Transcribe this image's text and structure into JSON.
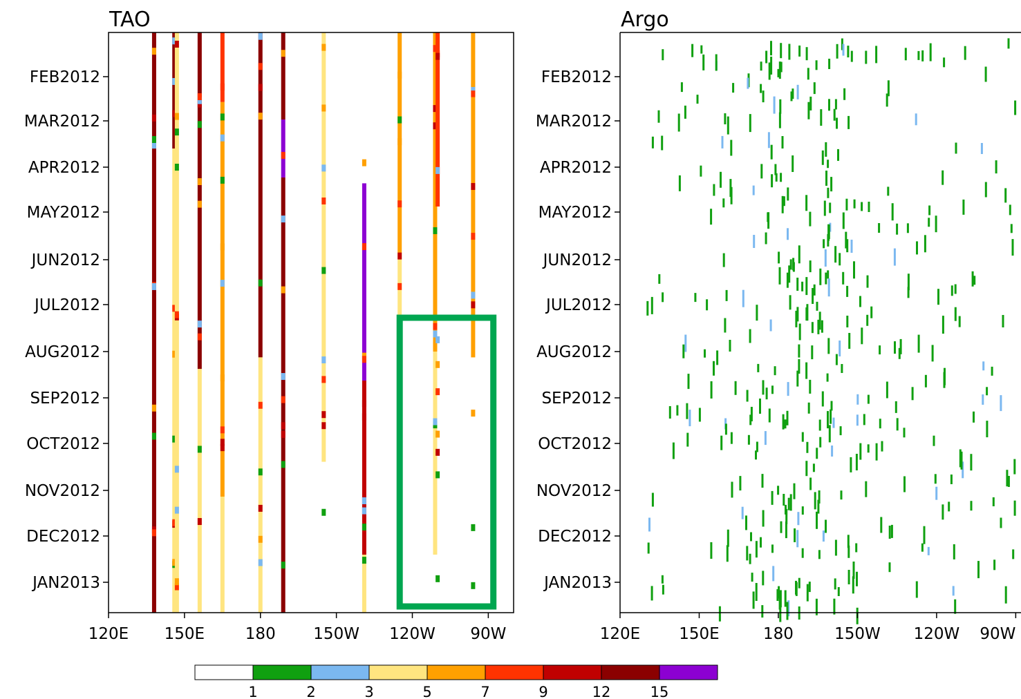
{
  "chart_data": [
    {
      "type": "heatmap",
      "title": "TAO",
      "x_ticks": [
        "120E",
        "150E",
        "180",
        "150W",
        "120W",
        "90W"
      ],
      "x_tick_lon": [
        120,
        150,
        180,
        210,
        240,
        270
      ],
      "xlim": [
        120,
        280
      ],
      "y_ticks": [
        "FEB2012",
        "MAR2012",
        "APR2012",
        "MAY2012",
        "JUN2012",
        "JUL2012",
        "AUG2012",
        "SEP2012",
        "OCT2012",
        "NOV2012",
        "DEC2012",
        "JAN2013"
      ],
      "ylim": [
        "JAN2012",
        "JAN2013"
      ],
      "columns": [
        {
          "lon": 138,
          "segments": [
            {
              "from": 0,
              "to": 1,
              "class": 7
            }
          ]
        },
        {
          "lon": 146,
          "segments": [
            {
              "from": 0,
              "to": 0.2,
              "class": 7
            },
            {
              "from": 0.2,
              "to": 1,
              "class": 3
            }
          ]
        },
        {
          "lon": 147,
          "segments": [
            {
              "from": 0,
              "to": 1,
              "class": 3
            }
          ]
        },
        {
          "lon": 156,
          "segments": [
            {
              "from": 0,
              "to": 0.58,
              "class": 7
            },
            {
              "from": 0.58,
              "to": 1,
              "class": 3
            }
          ]
        },
        {
          "lon": 165,
          "segments": [
            {
              "from": 0,
              "to": 0.12,
              "class": 5
            },
            {
              "from": 0.12,
              "to": 0.8,
              "class": 4
            },
            {
              "from": 0.8,
              "to": 1,
              "class": 3
            }
          ]
        },
        {
          "lon": 180,
          "segments": [
            {
              "from": 0,
              "to": 0.56,
              "class": 7
            },
            {
              "from": 0.56,
              "to": 1,
              "class": 3
            }
          ]
        },
        {
          "lon": 189,
          "segments": [
            {
              "from": 0,
              "to": 0.15,
              "class": 7
            },
            {
              "from": 0.15,
              "to": 0.25,
              "class": 8
            },
            {
              "from": 0.25,
              "to": 1,
              "class": 7
            }
          ]
        },
        {
          "lon": 205,
          "segments": [
            {
              "from": 0,
              "to": 0.74,
              "class": 3
            }
          ]
        },
        {
          "lon": 221,
          "segments": [
            {
              "from": 0.26,
              "to": 0.6,
              "class": 8
            },
            {
              "from": 0.6,
              "to": 0.9,
              "class": 6
            },
            {
              "from": 0.9,
              "to": 1,
              "class": 3
            }
          ]
        },
        {
          "lon": 235,
          "segments": [
            {
              "from": 0,
              "to": 0.38,
              "class": 4
            },
            {
              "from": 0.38,
              "to": 0.85,
              "class": 3
            }
          ]
        },
        {
          "lon": 249,
          "segments": [
            {
              "from": 0,
              "to": 0.55,
              "class": 4
            },
            {
              "from": 0.55,
              "to": 0.9,
              "class": 3
            }
          ]
        },
        {
          "lon": 250,
          "segments": [
            {
              "from": 0,
              "to": 0.3,
              "class": 5
            }
          ]
        },
        {
          "lon": 264,
          "segments": [
            {
              "from": 0,
              "to": 0.56,
              "class": 4
            }
          ]
        }
      ],
      "highlight_box": {
        "lon": [
          235,
          272
        ],
        "date": [
          "JUL2012",
          "JAN2013"
        ],
        "color": "#00a650"
      }
    },
    {
      "type": "heatmap",
      "title": "Argo",
      "x_ticks": [
        "120E",
        "150E",
        "180",
        "150W",
        "120W",
        "90W"
      ],
      "x_tick_lon": [
        120,
        150,
        180,
        210,
        240,
        270
      ],
      "xlim": [
        120,
        272
      ],
      "y_ticks": [
        "FEB2012",
        "MAR2012",
        "APR2012",
        "MAY2012",
        "JUN2012",
        "JUL2012",
        "AUG2012",
        "SEP2012",
        "OCT2012",
        "NOV2012",
        "DEC2012",
        "JAN2013"
      ],
      "ylim": [
        "JAN2012",
        "JAN2013"
      ],
      "dominant_class": 1,
      "secondary_class": 2
    }
  ],
  "colorbar": {
    "labels": [
      "1",
      "2",
      "3",
      "5",
      "7",
      "9",
      "12",
      "15"
    ],
    "colors": [
      "#ffffff",
      "#10a010",
      "#7bb8f0",
      "#ffe580",
      "#ffa000",
      "#ff3300",
      "#c00000",
      "#8b0000",
      "#8c00d2"
    ]
  }
}
